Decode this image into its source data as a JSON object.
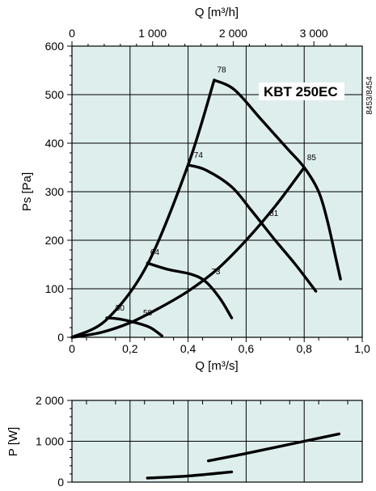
{
  "chart_data": [
    {
      "type": "line",
      "model_label": "KBT 250EC",
      "side_code": "8453/8454",
      "xlabel_top": "Q [m³/h]",
      "xlabel": "Q [m³/s]",
      "ylabel": "Ps [Pa]",
      "xlim": [
        0,
        1.0
      ],
      "ylim": [
        0,
        600
      ],
      "grid": true,
      "top_ticks": [
        {
          "q_m3h": 0,
          "label": "0"
        },
        {
          "q_m3h": 1000,
          "label": "1 000"
        },
        {
          "q_m3h": 2000,
          "label": "2 000"
        },
        {
          "q_m3h": 3000,
          "label": "3 000"
        }
      ],
      "x_ticks": [
        {
          "value": 0,
          "label": "0"
        },
        {
          "value": 0.2,
          "label": "0,2"
        },
        {
          "value": 0.4,
          "label": "0,4"
        },
        {
          "value": 0.6,
          "label": "0,6"
        },
        {
          "value": 0.8,
          "label": "0,8"
        },
        {
          "value": 1.0,
          "label": "1,0"
        }
      ],
      "y_ticks": [
        {
          "value": 0,
          "label": "0"
        },
        {
          "value": 100,
          "label": "100"
        },
        {
          "value": 200,
          "label": "200"
        },
        {
          "value": 300,
          "label": "300"
        },
        {
          "value": 400,
          "label": "400"
        },
        {
          "value": 500,
          "label": "500"
        },
        {
          "value": 600,
          "label": "600"
        }
      ],
      "series": [
        {
          "points": [
            [
              0.49,
              530
            ],
            [
              0.56,
              510
            ],
            [
              0.65,
              450
            ],
            [
              0.74,
              390
            ],
            [
              0.8,
              350
            ],
            [
              0.85,
              300
            ],
            [
              0.88,
              240
            ],
            [
              0.91,
              160
            ],
            [
              0.925,
              120
            ]
          ]
        },
        {
          "points": [
            [
              0.4,
              355
            ],
            [
              0.46,
              345
            ],
            [
              0.55,
              310
            ],
            [
              0.62,
              260
            ],
            [
              0.7,
              200
            ],
            [
              0.77,
              150
            ],
            [
              0.84,
              95
            ]
          ]
        },
        {
          "points": [
            [
              0.26,
              153
            ],
            [
              0.33,
              140
            ],
            [
              0.41,
              130
            ],
            [
              0.46,
              115
            ],
            [
              0.51,
              80
            ],
            [
              0.55,
              40
            ]
          ]
        },
        {
          "points": [
            [
              0.12,
              40
            ],
            [
              0.16,
              38
            ],
            [
              0.22,
              30
            ],
            [
              0.27,
              20
            ],
            [
              0.31,
              3
            ]
          ]
        },
        {
          "points": [
            [
              0.0,
              0
            ],
            [
              0.12,
              37
            ],
            [
              0.26,
              150
            ],
            [
              0.4,
              355
            ],
            [
              0.49,
              530
            ]
          ]
        },
        {
          "points": [
            [
              0.0,
              0
            ],
            [
              0.1,
              10
            ],
            [
              0.2,
              30
            ],
            [
              0.3,
              60
            ],
            [
              0.4,
              95
            ],
            [
              0.5,
              140
            ],
            [
              0.6,
              200
            ],
            [
              0.7,
              270
            ],
            [
              0.8,
              350
            ]
          ]
        }
      ],
      "annotations": [
        {
          "text": "78",
          "x": 0.5,
          "y": 546
        },
        {
          "text": "74",
          "x": 0.42,
          "y": 370
        },
        {
          "text": "64",
          "x": 0.27,
          "y": 170
        },
        {
          "text": "50",
          "x": 0.15,
          "y": 55
        },
        {
          "text": "85",
          "x": 0.81,
          "y": 365
        },
        {
          "text": "81",
          "x": 0.68,
          "y": 250
        },
        {
          "text": "73",
          "x": 0.48,
          "y": 130
        },
        {
          "text": "58",
          "x": 0.245,
          "y": 45
        }
      ]
    },
    {
      "type": "line",
      "ylabel": "P [W]",
      "xlim": [
        0,
        1.0
      ],
      "ylim": [
        0,
        2000
      ],
      "grid": true,
      "y_ticks": [
        {
          "value": 0,
          "label": "0"
        },
        {
          "value": 1000,
          "label": "1 000"
        },
        {
          "value": 2000,
          "label": "2 000"
        }
      ],
      "series": [
        {
          "points": [
            [
              0.26,
              100
            ],
            [
              0.4,
              150
            ],
            [
              0.55,
              250
            ]
          ]
        },
        {
          "points": [
            [
              0.47,
              520
            ],
            [
              0.6,
              700
            ],
            [
              0.8,
              1000
            ],
            [
              0.92,
              1180
            ]
          ]
        }
      ]
    }
  ]
}
